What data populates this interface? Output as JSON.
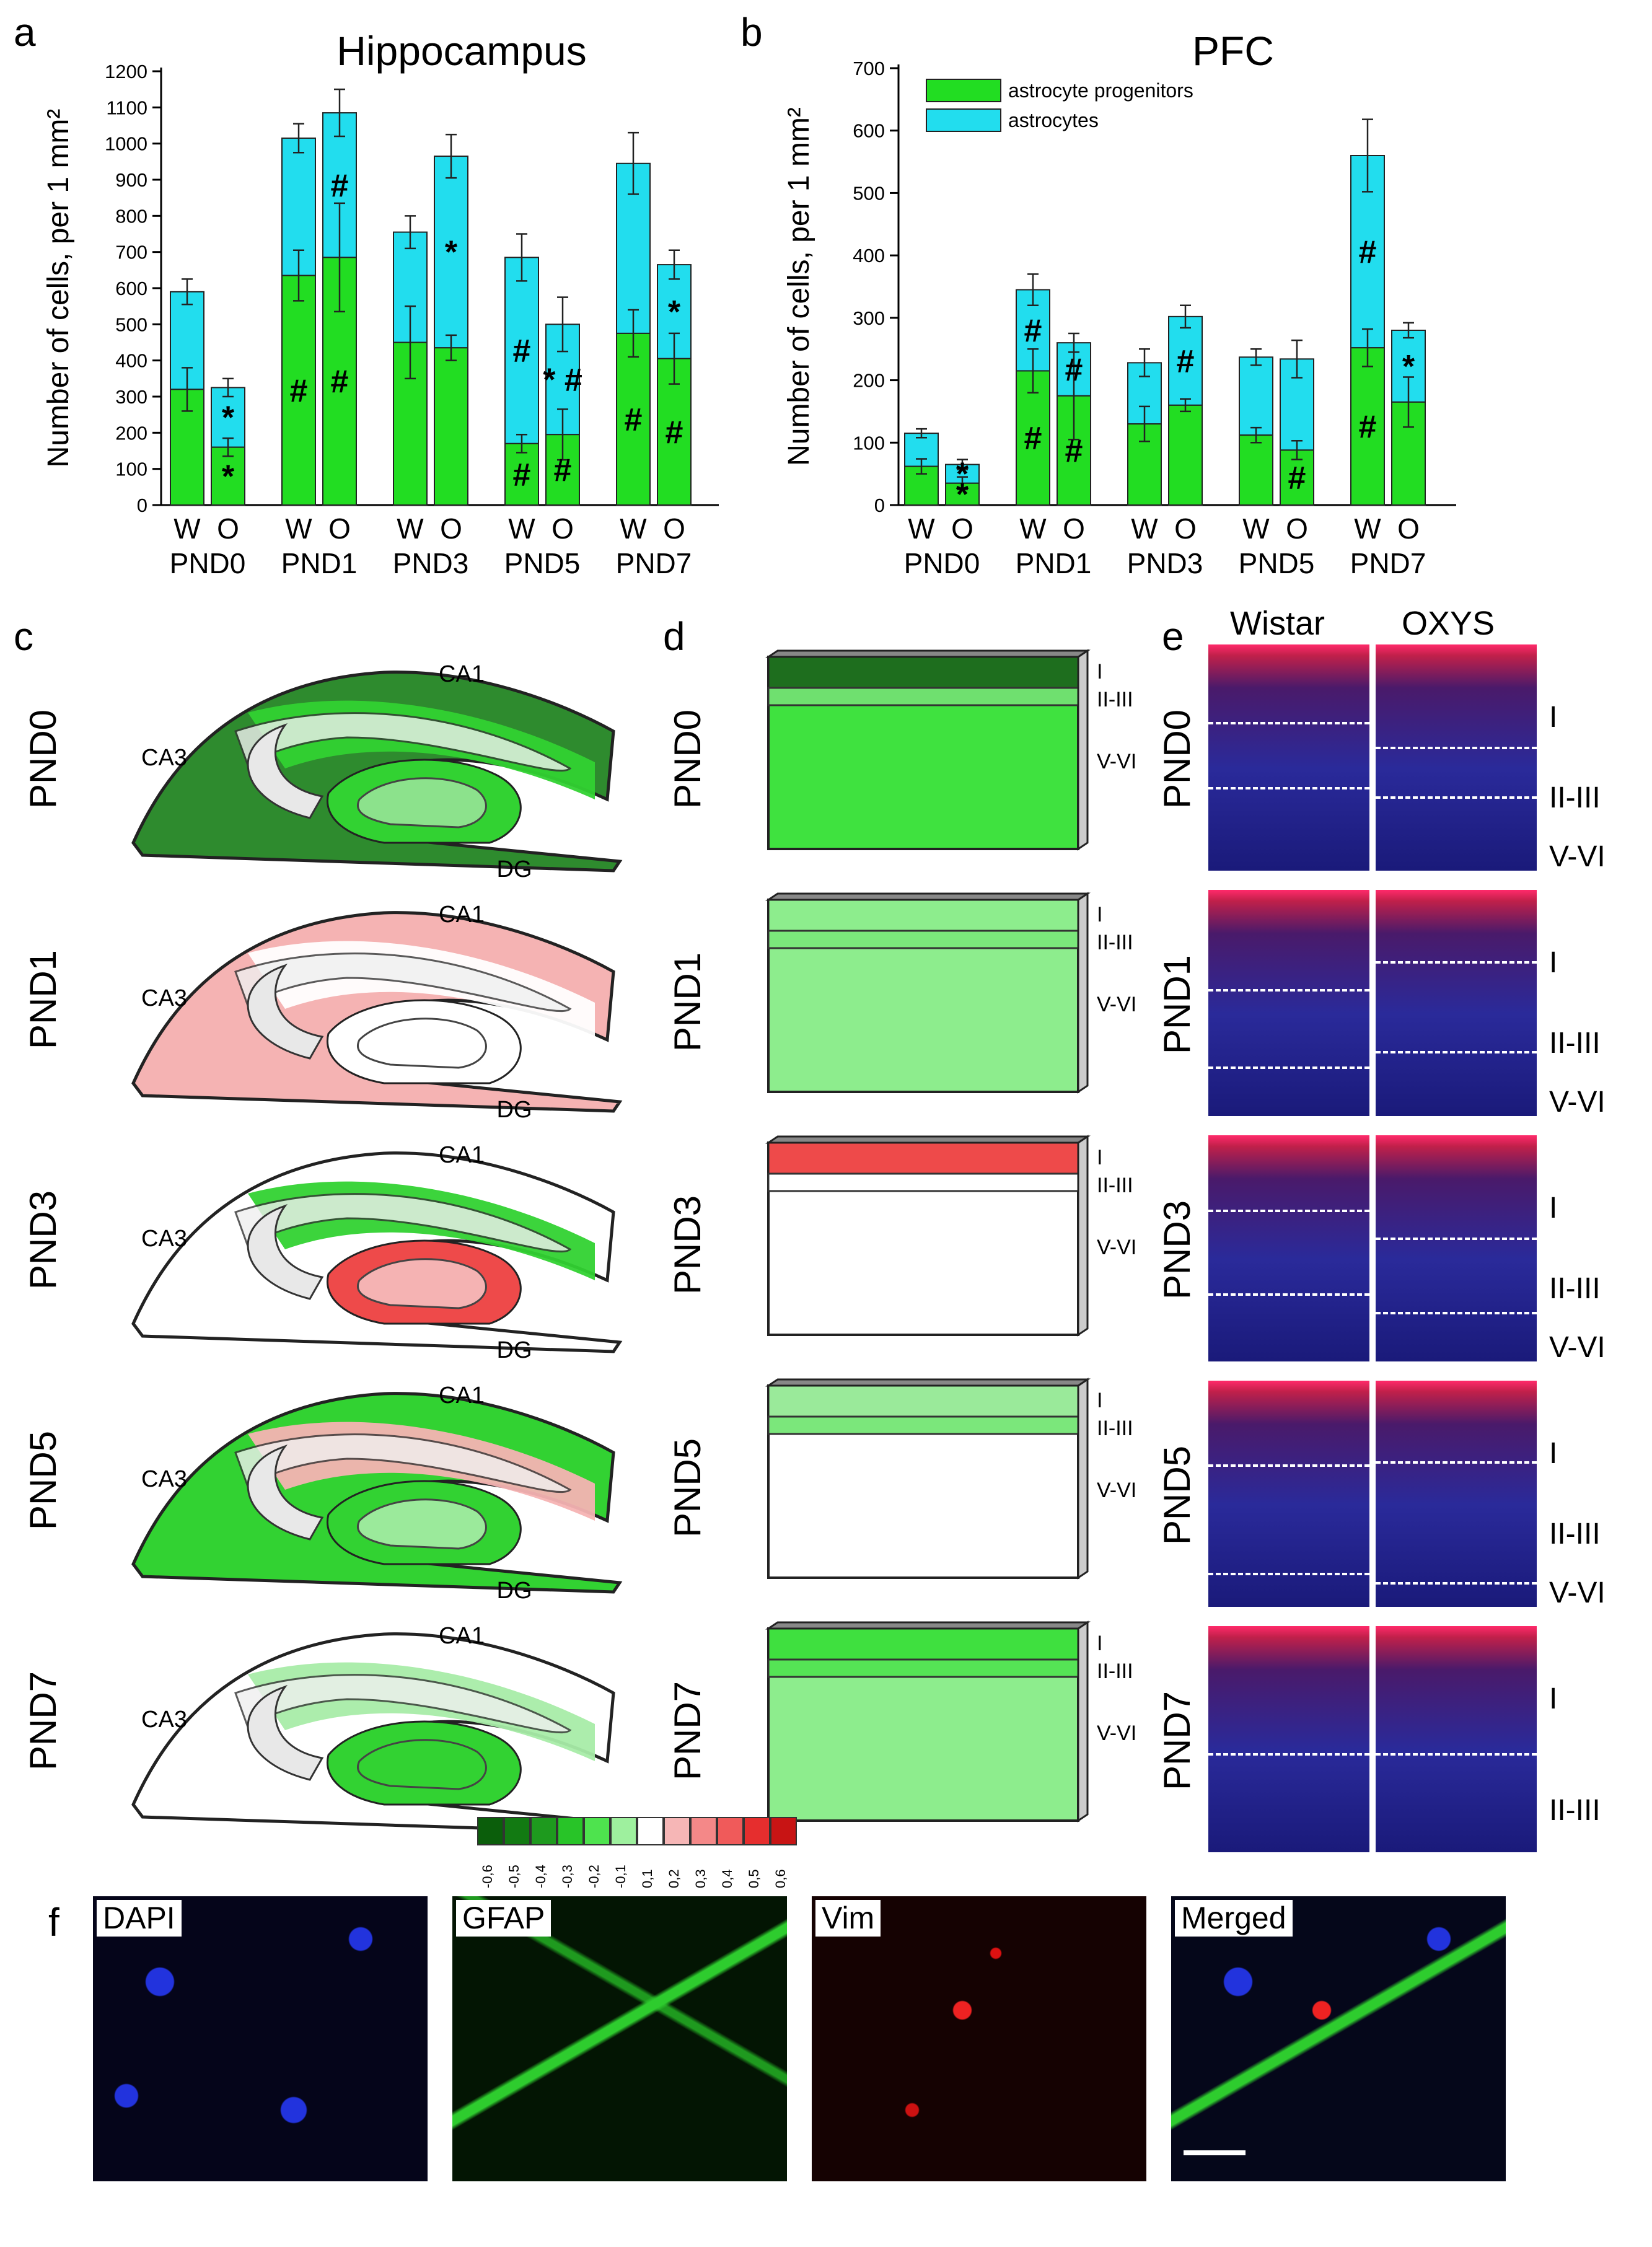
{
  "panels": {
    "a": "a",
    "b": "b",
    "c": "c",
    "d": "d",
    "e": "e",
    "f": "f"
  },
  "chart_data": [
    {
      "type": "bar",
      "stacked": true,
      "title": "Hippocampus",
      "ylabel": "Number of cells, per 1 mm²",
      "ylim": [
        0,
        1200
      ],
      "yticks": [
        0,
        100,
        200,
        300,
        400,
        500,
        600,
        700,
        800,
        900,
        1000,
        1100,
        1200
      ],
      "groups": [
        "PND0",
        "PND1",
        "PND3",
        "PND5",
        "PND7"
      ],
      "bar_labels": [
        "W",
        "O"
      ],
      "series": [
        {
          "name": "astrocyte progenitors",
          "color": "#22dd22",
          "values": [
            [
              320,
              160
            ],
            [
              635,
              685
            ],
            [
              450,
              435
            ],
            [
              170,
              195
            ],
            [
              475,
              405
            ]
          ],
          "errors": [
            [
              60,
              25
            ],
            [
              70,
              150
            ],
            [
              100,
              35
            ],
            [
              25,
              70
            ],
            [
              65,
              70
            ]
          ]
        },
        {
          "name": "astrocytes",
          "color": "#22ddee",
          "totals": [
            [
              590,
              325
            ],
            [
              1015,
              1085
            ],
            [
              755,
              965
            ],
            [
              685,
              500
            ],
            [
              945,
              665
            ]
          ],
          "errors": [
            [
              35,
              25
            ],
            [
              40,
              65
            ],
            [
              45,
              60
            ],
            [
              65,
              75
            ],
            [
              85,
              40
            ]
          ]
        }
      ],
      "marks": {
        "progenitors": [
          [
            "",
            "*"
          ],
          [
            "#",
            "#"
          ],
          [
            "",
            ""
          ],
          [
            "#",
            "#"
          ],
          [
            "#",
            "#"
          ]
        ],
        "astrocytes": [
          [
            "",
            "*"
          ],
          [
            "",
            "#"
          ],
          [
            "",
            "*"
          ],
          [
            "#",
            "* #"
          ],
          [
            "",
            "*"
          ]
        ]
      }
    },
    {
      "type": "bar",
      "stacked": true,
      "title": "PFC",
      "ylabel": "Number of cells, per 1 mm²",
      "ylim": [
        0,
        700
      ],
      "yticks": [
        0,
        100,
        200,
        300,
        400,
        500,
        600,
        700
      ],
      "groups": [
        "PND0",
        "PND1",
        "PND3",
        "PND5",
        "PND7"
      ],
      "bar_labels": [
        "W",
        "O"
      ],
      "legend": [
        "astrocyte progenitors",
        "astrocytes"
      ],
      "series": [
        {
          "name": "astrocyte progenitors",
          "color": "#22dd22",
          "values": [
            [
              62,
              35
            ],
            [
              215,
              175
            ],
            [
              130,
              160
            ],
            [
              112,
              88
            ],
            [
              252,
              165
            ]
          ],
          "errors": [
            [
              12,
              10
            ],
            [
              35,
              70
            ],
            [
              28,
              10
            ],
            [
              12,
              15
            ],
            [
              30,
              40
            ]
          ]
        },
        {
          "name": "astrocytes",
          "color": "#22ddee",
          "totals": [
            [
              115,
              65
            ],
            [
              345,
              260
            ],
            [
              228,
              302
            ],
            [
              237,
              234
            ],
            [
              560,
              280
            ]
          ],
          "errors": [
            [
              7,
              8
            ],
            [
              25,
              15
            ],
            [
              22,
              18
            ],
            [
              13,
              30
            ],
            [
              58,
              12
            ]
          ]
        }
      ],
      "marks": {
        "progenitors": [
          [
            "",
            "*"
          ],
          [
            "#",
            "#"
          ],
          [
            "",
            ""
          ],
          [
            "",
            "#"
          ],
          [
            "#",
            ""
          ]
        ],
        "astrocytes": [
          [
            "",
            "*"
          ],
          [
            "#",
            "#"
          ],
          [
            "",
            "#"
          ],
          [
            "",
            ""
          ],
          [
            "#",
            "*"
          ]
        ]
      }
    }
  ],
  "panel_c": {
    "rows": [
      "PND0",
      "PND1",
      "PND3",
      "PND5",
      "PND7"
    ],
    "region_labels": {
      "ca1": "CA1",
      "ca3": "CA3",
      "dg": "DG"
    }
  },
  "panel_d": {
    "rows": [
      "PND0",
      "PND1",
      "PND3",
      "PND5",
      "PND7"
    ],
    "layers": [
      "I",
      "II-III",
      "V-VI"
    ]
  },
  "panel_e": {
    "columns": [
      "Wistar",
      "OXYS"
    ],
    "rows": [
      "PND0",
      "PND1",
      "PND3",
      "PND5",
      "PND7"
    ],
    "layers": [
      "I",
      "II-III",
      "V-VI"
    ]
  },
  "colorbar": {
    "ticks": [
      "-0,6",
      "-0,5",
      "-0,4",
      "-0,3",
      "-0,2",
      "-0,1",
      "0,1",
      "0,2",
      "0,3",
      "0,4",
      "0,5",
      "0,6"
    ],
    "colors": [
      "#0b5e0b",
      "#127a12",
      "#1e9a1e",
      "#28c428",
      "#4ee34e",
      "#9ef09e",
      "#ffffff",
      "#f6b6b6",
      "#f48888",
      "#f05a5a",
      "#e62e2e",
      "#c81414"
    ]
  },
  "panel_f": {
    "channels": [
      "DAPI",
      "GFAP",
      "Vim",
      "Merged"
    ]
  }
}
